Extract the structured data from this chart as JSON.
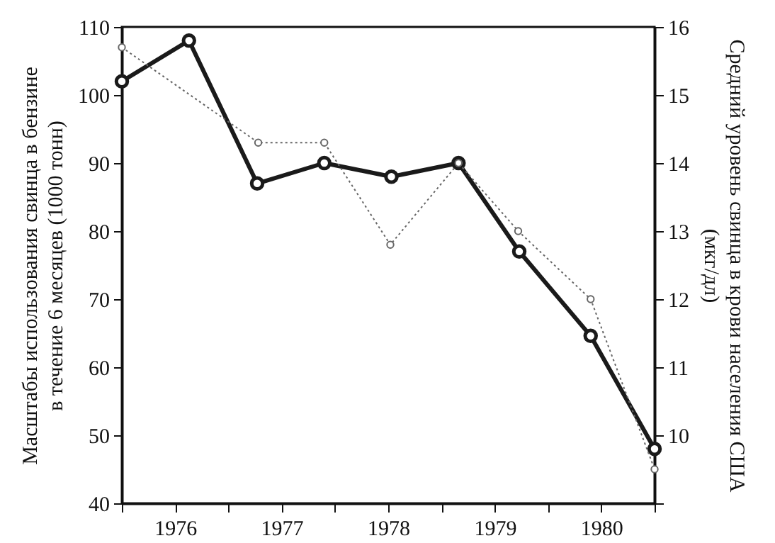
{
  "chart_data": {
    "type": "line",
    "ylabel": "Масштабы использования свинца в бензине\nв течение 6 месяцев (1000 тонн)",
    "y2label": "Средний уровень свинца в крови населения США\n(мкг/дл)",
    "xlim": [
      1976,
      1981
    ],
    "xticks": [
      {
        "value": 1976,
        "label": null
      },
      {
        "value": 1976.5,
        "label": "1976"
      },
      {
        "value": 1977,
        "label": null
      },
      {
        "value": 1977.5,
        "label": "1977"
      },
      {
        "value": 1978,
        "label": null
      },
      {
        "value": 1978.5,
        "label": "1978"
      },
      {
        "value": 1979,
        "label": null
      },
      {
        "value": 1979.5,
        "label": "1979"
      },
      {
        "value": 1980,
        "label": null
      },
      {
        "value": 1980.5,
        "label": "1980"
      },
      {
        "value": 1981,
        "label": null
      }
    ],
    "ylim": [
      40,
      110
    ],
    "yticks": [
      40,
      50,
      60,
      70,
      80,
      90,
      100,
      110
    ],
    "y2lim": [
      9,
      16
    ],
    "y2ticks": [
      {
        "value": 9,
        "label": null
      },
      10,
      11,
      12,
      13,
      14,
      15,
      16
    ],
    "marker": "circle",
    "grid": false,
    "series": [
      {
        "color": "#1a1a1a",
        "line_style": "solid",
        "x": [
          1976.0,
          1976.63,
          1977.27,
          1977.9,
          1978.53,
          1979.16,
          1979.73,
          1980.4,
          1981.0
        ],
        "values": [
          102,
          108,
          87,
          90,
          88,
          90,
          77,
          64.6,
          48
        ]
      },
      {
        "color": "#666666",
        "line_style": "dotted",
        "axis": "y2",
        "x": [
          1976.0,
          1977.28,
          1977.9,
          1978.52,
          1979.16,
          1979.72,
          1980.4,
          1981.0
        ],
        "values": [
          15.7,
          14.3,
          14.3,
          12.8,
          14.0,
          13.0,
          12.0,
          9.5
        ]
      }
    ]
  }
}
